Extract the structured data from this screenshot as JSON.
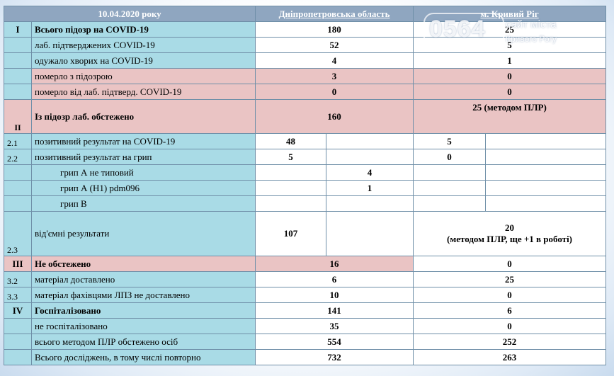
{
  "header": {
    "date": "10.04.2020 року",
    "col_region": "Дніпропетровська область",
    "col_city": "м. Кривий Ріг"
  },
  "watermark": {
    "logo": "0564",
    "line1": "сайт міста",
    "line2": "Кривого Рогу"
  },
  "rows": {
    "r1": {
      "sec": "I",
      "label": "Всього підозр на COVID-19",
      "region": "180",
      "city": "25"
    },
    "r2": {
      "label": "лаб. підтверджених COVID-19",
      "region": "52",
      "city": "5"
    },
    "r3": {
      "label": "одужало хворих на COVID-19",
      "region": "4",
      "city": "1"
    },
    "r4": {
      "label": "померло з підозрою",
      "region": "3",
      "city": "0"
    },
    "r5": {
      "label": "померло від лаб. підтверд. COVID-19",
      "region": "0",
      "city": "0"
    },
    "r6": {
      "sec": "II",
      "label": "Із підозр лаб. обстежено",
      "region": "160",
      "city": "25 (методом ПЛР)"
    },
    "r7": {
      "sec": "2.1",
      "label": "позитивний  результат на COVID-19",
      "region_a": "48",
      "city_a": "5"
    },
    "r8": {
      "sec": "2.2",
      "label": "позитивний  результат на грип",
      "region_a": "5",
      "city_a": "0"
    },
    "r9": {
      "label": "грип  А не типовий",
      "region_b": "4"
    },
    "r10": {
      "label": "грип  А (Н1) pdm096",
      "region_b": "1"
    },
    "r11": {
      "label": "грип  В"
    },
    "r12": {
      "sec": "2.3",
      "label": "від'ємні результати",
      "region_a": "107",
      "city_l1": "20",
      "city_l2": "(методом ПЛР, ще +1 в роботі)"
    },
    "r13": {
      "sec": "III",
      "label": "Не обстежено",
      "region": "16",
      "city": "0"
    },
    "r14": {
      "sec": "3.2",
      "label": "матеріал доставлено",
      "region": "6",
      "city": "25"
    },
    "r15": {
      "sec": "3.3",
      "label": "матеріал фахівцями ЛПЗ не доставлено",
      "region": "10",
      "city": "0"
    },
    "r16": {
      "sec": "IV",
      "label": "Госпіталізовано",
      "region": "141",
      "city": "6"
    },
    "r17": {
      "label": "не госпіталізовано",
      "region": "35",
      "city": "0"
    },
    "r18": {
      "label": "всього методом ПЛР обстежено осіб",
      "region": "554",
      "city": "252"
    },
    "r19": {
      "label": "Всього досліджень, в тому числі   повторно",
      "region": "732",
      "city": "263"
    }
  }
}
